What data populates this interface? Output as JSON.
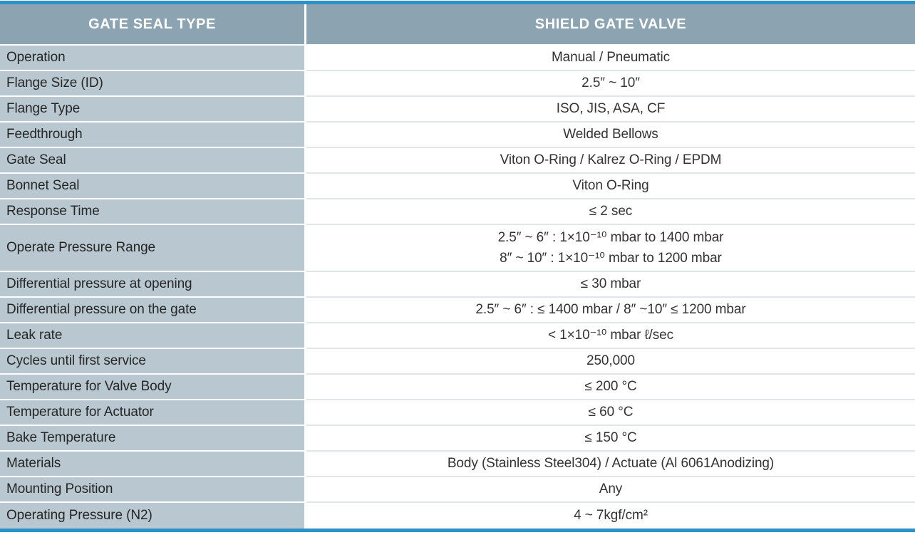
{
  "table": {
    "header": {
      "left": "GATE SEAL TYPE",
      "right": "SHIELD GATE VALVE"
    },
    "rows": [
      {
        "label": "Operation",
        "value": "Manual / Pneumatic"
      },
      {
        "label": "Flange Size (ID)",
        "value": "2.5″ ~ 10″"
      },
      {
        "label": "Flange Type",
        "value": "ISO, JIS, ASA, CF"
      },
      {
        "label": "Feedthrough",
        "value": "Welded Bellows"
      },
      {
        "label": "Gate Seal",
        "value": "Viton O-Ring / Kalrez O-Ring / EPDM"
      },
      {
        "label": "Bonnet Seal",
        "value": "Viton O-Ring"
      },
      {
        "label": "Response Time",
        "value": "≤ 2 sec"
      },
      {
        "label": "Operate Pressure Range",
        "value": "2.5″ ~ 6″ : 1×10⁻¹⁰ mbar to 1400 mbar\n8″ ~ 10″ : 1×10⁻¹⁰ mbar to 1200 mbar",
        "tall": true
      },
      {
        "label": "Differential pressure at opening",
        "value": "≤ 30 mbar"
      },
      {
        "label": "Differential pressure on the gate",
        "value": "2.5″ ~ 6″ : ≤ 1400 mbar / 8″ ~10″ ≤ 1200 mbar"
      },
      {
        "label": "Leak rate",
        "value": "< 1×10⁻¹⁰ mbar ℓ/sec"
      },
      {
        "label": "Cycles until first service",
        "value": "250,000"
      },
      {
        "label": "Temperature for Valve Body",
        "value": "≤ 200 °C"
      },
      {
        "label": "Temperature for Actuator",
        "value": "≤ 60 °C"
      },
      {
        "label": "Bake Temperature",
        "value": "≤ 150 °C"
      },
      {
        "label": "Materials",
        "value": "Body (Stainless Steel304) / Actuate (Al 6061Anodizing)"
      },
      {
        "label": "Mounting Position",
        "value": "Any"
      },
      {
        "label": "Operating Pressure (N2)",
        "value": "4 ~ 7kgf/cm²"
      }
    ],
    "colors": {
      "accent_border": "#2b91c8",
      "header_bg": "#8ca4b2",
      "label_bg": "#b9c8d0",
      "value_divider": "#e2e5e7",
      "header_text": "#ffffff",
      "body_text": "#333333"
    }
  }
}
